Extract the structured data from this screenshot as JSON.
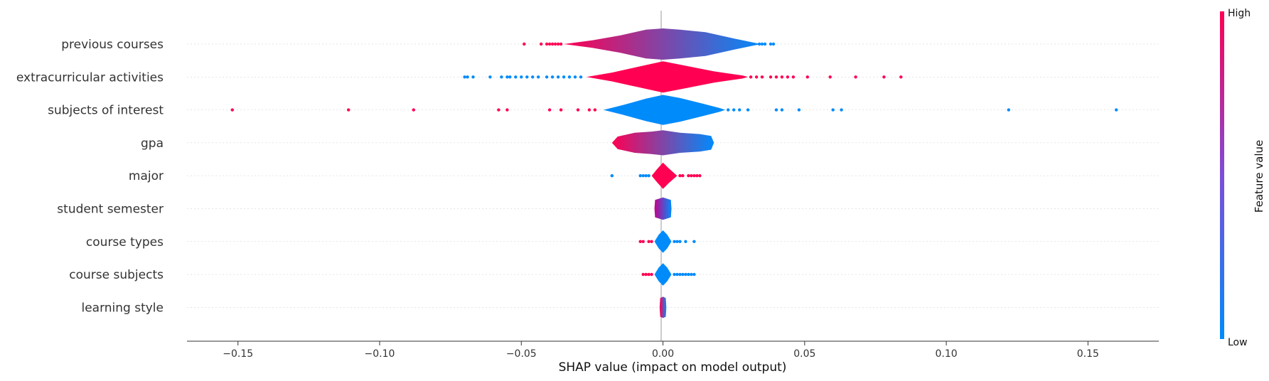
{
  "chart_data": {
    "type": "violin",
    "xlabel": "SHAP value (impact on model output)",
    "xlim": [
      -0.168,
      0.175
    ],
    "xticks": [
      {
        "value": -0.15,
        "label": "−0.15"
      },
      {
        "value": -0.1,
        "label": "−0.10"
      },
      {
        "value": -0.05,
        "label": "−0.05"
      },
      {
        "value": 0.0,
        "label": "0.00"
      },
      {
        "value": 0.05,
        "label": "0.05"
      },
      {
        "value": 0.1,
        "label": "0.10"
      },
      {
        "value": 0.15,
        "label": "0.15"
      }
    ],
    "colorbar": {
      "title": "Feature value",
      "high_label": "High",
      "low_label": "Low",
      "high_color": "#ff0052",
      "mid_color": "#7d4dd9",
      "low_color": "#008bfb"
    },
    "features": [
      {
        "name": "previous courses",
        "min": -0.049,
        "max": 0.039,
        "profile": [
          [
            -0.035,
            0.0
          ],
          [
            -0.025,
            0.12
          ],
          [
            -0.015,
            0.28
          ],
          [
            -0.006,
            0.46
          ],
          [
            0.0,
            0.5
          ],
          [
            0.006,
            0.46
          ],
          [
            0.015,
            0.38
          ],
          [
            0.025,
            0.18
          ],
          [
            0.033,
            0.03
          ],
          [
            0.035,
            0.0
          ]
        ],
        "left_color": "#ff0052",
        "right_color": "#008bfb",
        "points": [
          {
            "x": -0.049,
            "c": "#ff0052"
          },
          {
            "x": -0.043,
            "c": "#ff0052"
          },
          {
            "x": -0.041,
            "c": "#ff0052"
          },
          {
            "x": -0.04,
            "c": "#ff0052"
          },
          {
            "x": -0.039,
            "c": "#ff0052"
          },
          {
            "x": -0.038,
            "c": "#ff0052"
          },
          {
            "x": -0.037,
            "c": "#ff0052"
          },
          {
            "x": -0.036,
            "c": "#ff0052"
          },
          {
            "x": 0.034,
            "c": "#008bfb"
          },
          {
            "x": 0.035,
            "c": "#008bfb"
          },
          {
            "x": 0.036,
            "c": "#008bfb"
          },
          {
            "x": 0.038,
            "c": "#008bfb"
          },
          {
            "x": 0.039,
            "c": "#008bfb"
          }
        ]
      },
      {
        "name": "extracurricular activities",
        "min": -0.07,
        "max": 0.084,
        "profile": [
          [
            -0.027,
            0.0
          ],
          [
            -0.018,
            0.14
          ],
          [
            -0.008,
            0.34
          ],
          [
            0.0,
            0.5
          ],
          [
            0.008,
            0.36
          ],
          [
            0.018,
            0.18
          ],
          [
            0.028,
            0.05
          ],
          [
            0.03,
            0.0
          ]
        ],
        "left_color": "#ff0052",
        "right_color": "#ff0052",
        "points": [
          {
            "x": -0.07,
            "c": "#008bfb"
          },
          {
            "x": -0.069,
            "c": "#008bfb"
          },
          {
            "x": -0.067,
            "c": "#008bfb"
          },
          {
            "x": -0.061,
            "c": "#008bfb"
          },
          {
            "x": -0.057,
            "c": "#008bfb"
          },
          {
            "x": -0.055,
            "c": "#008bfb"
          },
          {
            "x": -0.054,
            "c": "#008bfb"
          },
          {
            "x": -0.052,
            "c": "#008bfb"
          },
          {
            "x": -0.05,
            "c": "#008bfb"
          },
          {
            "x": -0.048,
            "c": "#008bfb"
          },
          {
            "x": -0.046,
            "c": "#008bfb"
          },
          {
            "x": -0.044,
            "c": "#008bfb"
          },
          {
            "x": -0.041,
            "c": "#008bfb"
          },
          {
            "x": -0.039,
            "c": "#008bfb"
          },
          {
            "x": -0.037,
            "c": "#008bfb"
          },
          {
            "x": -0.035,
            "c": "#008bfb"
          },
          {
            "x": -0.033,
            "c": "#008bfb"
          },
          {
            "x": -0.031,
            "c": "#008bfb"
          },
          {
            "x": -0.029,
            "c": "#008bfb"
          },
          {
            "x": 0.031,
            "c": "#ff0052"
          },
          {
            "x": 0.033,
            "c": "#ff0052"
          },
          {
            "x": 0.035,
            "c": "#ff0052"
          },
          {
            "x": 0.038,
            "c": "#ff0052"
          },
          {
            "x": 0.04,
            "c": "#ff0052"
          },
          {
            "x": 0.042,
            "c": "#ff0052"
          },
          {
            "x": 0.044,
            "c": "#ff0052"
          },
          {
            "x": 0.046,
            "c": "#ff0052"
          },
          {
            "x": 0.051,
            "c": "#ff0052"
          },
          {
            "x": 0.059,
            "c": "#ff0052"
          },
          {
            "x": 0.068,
            "c": "#ff0052"
          },
          {
            "x": 0.078,
            "c": "#ff0052"
          },
          {
            "x": 0.084,
            "c": "#ff0052"
          }
        ]
      },
      {
        "name": "subjects of interest",
        "min": -0.152,
        "max": 0.16,
        "profile": [
          [
            -0.021,
            0.0
          ],
          [
            -0.014,
            0.16
          ],
          [
            -0.006,
            0.36
          ],
          [
            0.0,
            0.48
          ],
          [
            0.006,
            0.38
          ],
          [
            0.014,
            0.2
          ],
          [
            0.02,
            0.06
          ],
          [
            0.022,
            0.0
          ]
        ],
        "left_color": "#008bfb",
        "right_color": "#008bfb",
        "points": [
          {
            "x": -0.152,
            "c": "#ff0052"
          },
          {
            "x": -0.111,
            "c": "#ff0052"
          },
          {
            "x": -0.088,
            "c": "#ff0052"
          },
          {
            "x": -0.058,
            "c": "#ff0052"
          },
          {
            "x": -0.055,
            "c": "#ff0052"
          },
          {
            "x": -0.04,
            "c": "#ff0052"
          },
          {
            "x": -0.036,
            "c": "#ff0052"
          },
          {
            "x": -0.03,
            "c": "#ff0052"
          },
          {
            "x": -0.026,
            "c": "#ff0052"
          },
          {
            "x": -0.024,
            "c": "#ff0052"
          },
          {
            "x": 0.023,
            "c": "#008bfb"
          },
          {
            "x": 0.025,
            "c": "#008bfb"
          },
          {
            "x": 0.027,
            "c": "#008bfb"
          },
          {
            "x": 0.03,
            "c": "#008bfb"
          },
          {
            "x": 0.04,
            "c": "#008bfb"
          },
          {
            "x": 0.042,
            "c": "#008bfb"
          },
          {
            "x": 0.048,
            "c": "#008bfb"
          },
          {
            "x": 0.06,
            "c": "#008bfb"
          },
          {
            "x": 0.063,
            "c": "#008bfb"
          },
          {
            "x": 0.122,
            "c": "#008bfb"
          },
          {
            "x": 0.16,
            "c": "#008bfb"
          }
        ]
      },
      {
        "name": "gpa",
        "min": -0.018,
        "max": 0.018,
        "profile": [
          [
            -0.018,
            0.0
          ],
          [
            -0.016,
            0.2
          ],
          [
            -0.01,
            0.32
          ],
          [
            -0.004,
            0.36
          ],
          [
            0.0,
            0.4
          ],
          [
            0.006,
            0.32
          ],
          [
            0.013,
            0.28
          ],
          [
            0.017,
            0.22
          ],
          [
            0.018,
            0.0
          ]
        ],
        "left_color": "#ff0052",
        "right_color": "#008bfb",
        "points": []
      },
      {
        "name": "major",
        "min": -0.018,
        "max": 0.013,
        "profile": [
          [
            -0.004,
            0.0
          ],
          [
            -0.002,
            0.22
          ],
          [
            0.0,
            0.42
          ],
          [
            0.002,
            0.24
          ],
          [
            0.004,
            0.08
          ],
          [
            0.005,
            0.0
          ]
        ],
        "left_color": "#ff0052",
        "right_color": "#ff0052",
        "points": [
          {
            "x": -0.018,
            "c": "#008bfb"
          },
          {
            "x": -0.008,
            "c": "#008bfb"
          },
          {
            "x": -0.007,
            "c": "#008bfb"
          },
          {
            "x": -0.006,
            "c": "#008bfb"
          },
          {
            "x": -0.005,
            "c": "#008bfb"
          },
          {
            "x": 0.006,
            "c": "#ff0052"
          },
          {
            "x": 0.007,
            "c": "#ff0052"
          },
          {
            "x": 0.009,
            "c": "#ff0052"
          },
          {
            "x": 0.01,
            "c": "#ff0052"
          },
          {
            "x": 0.011,
            "c": "#ff0052"
          },
          {
            "x": 0.012,
            "c": "#ff0052"
          },
          {
            "x": 0.013,
            "c": "#ff0052"
          }
        ]
      },
      {
        "name": "student semester",
        "min": -0.003,
        "max": 0.003,
        "profile": [
          [
            -0.003,
            0.0
          ],
          [
            -0.0028,
            0.28
          ],
          [
            0.0,
            0.36
          ],
          [
            0.0028,
            0.28
          ],
          [
            0.003,
            0.0
          ]
        ],
        "left_color": "#c5008a",
        "right_color": "#008bfb",
        "points": []
      },
      {
        "name": "course types",
        "min": -0.008,
        "max": 0.011,
        "profile": [
          [
            -0.003,
            0.0
          ],
          [
            -0.0015,
            0.22
          ],
          [
            0.0,
            0.36
          ],
          [
            0.0015,
            0.22
          ],
          [
            0.003,
            0.0
          ]
        ],
        "left_color": "#008bfb",
        "right_color": "#008bfb",
        "points": [
          {
            "x": -0.008,
            "c": "#ff0052"
          },
          {
            "x": -0.007,
            "c": "#ff0052"
          },
          {
            "x": -0.005,
            "c": "#ff0052"
          },
          {
            "x": -0.004,
            "c": "#ff0052"
          },
          {
            "x": 0.004,
            "c": "#008bfb"
          },
          {
            "x": 0.005,
            "c": "#008bfb"
          },
          {
            "x": 0.006,
            "c": "#008bfb"
          },
          {
            "x": 0.008,
            "c": "#008bfb"
          },
          {
            "x": 0.011,
            "c": "#008bfb"
          }
        ]
      },
      {
        "name": "course subjects",
        "min": -0.007,
        "max": 0.011,
        "profile": [
          [
            -0.003,
            0.0
          ],
          [
            -0.0015,
            0.22
          ],
          [
            0.0,
            0.36
          ],
          [
            0.0015,
            0.22
          ],
          [
            0.003,
            0.0
          ]
        ],
        "left_color": "#008bfb",
        "right_color": "#008bfb",
        "points": [
          {
            "x": -0.007,
            "c": "#ff0052"
          },
          {
            "x": -0.006,
            "c": "#ff0052"
          },
          {
            "x": -0.005,
            "c": "#ff0052"
          },
          {
            "x": -0.004,
            "c": "#ff0052"
          },
          {
            "x": 0.004,
            "c": "#008bfb"
          },
          {
            "x": 0.005,
            "c": "#008bfb"
          },
          {
            "x": 0.006,
            "c": "#008bfb"
          },
          {
            "x": 0.007,
            "c": "#008bfb"
          },
          {
            "x": 0.008,
            "c": "#008bfb"
          },
          {
            "x": 0.009,
            "c": "#008bfb"
          },
          {
            "x": 0.01,
            "c": "#008bfb"
          },
          {
            "x": 0.011,
            "c": "#008bfb"
          }
        ]
      },
      {
        "name": "learning style",
        "min": -0.001,
        "max": 0.001,
        "profile": [
          [
            -0.0012,
            0.0
          ],
          [
            -0.001,
            0.3
          ],
          [
            0.0,
            0.34
          ],
          [
            0.001,
            0.3
          ],
          [
            0.0012,
            0.0
          ]
        ],
        "left_color": "#ff0052",
        "right_color": "#008bfb",
        "points": []
      }
    ]
  }
}
